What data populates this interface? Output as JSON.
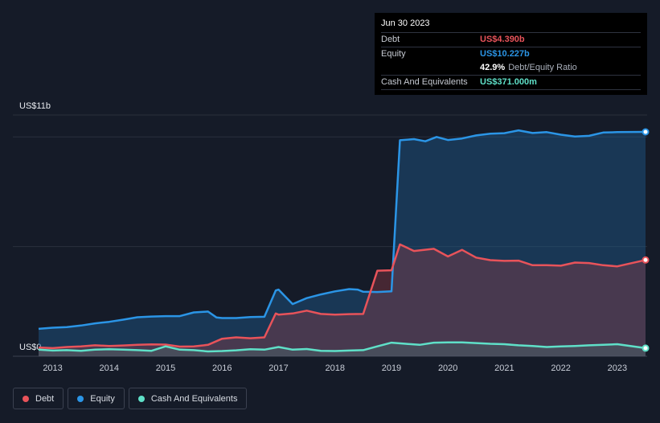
{
  "tooltip": {
    "date": "Jun 30 2023",
    "rows": [
      {
        "label": "Debt",
        "value": "US$4.390b",
        "color": "#e8535a"
      },
      {
        "label": "Equity",
        "value": "US$10.227b",
        "color": "#2b95e6"
      },
      {
        "label": "",
        "value": "42.9%",
        "suffix": "Debt/Equity Ratio"
      },
      {
        "label": "Cash And Equivalents",
        "value": "US$371.000m",
        "color": "#5fe0c8"
      }
    ]
  },
  "legend": [
    {
      "label": "Debt",
      "color": "#e8535a"
    },
    {
      "label": "Equity",
      "color": "#2b95e6"
    },
    {
      "label": "Cash And Equivalents",
      "color": "#5fe0c8"
    }
  ],
  "chart_data": {
    "type": "area",
    "y_top_label": "US$11b",
    "y_bottom_label": "US$0",
    "ylim": [
      0,
      11
    ],
    "xlim": [
      2012.75,
      2023.5
    ],
    "x_ticks": [
      "2013",
      "2014",
      "2015",
      "2016",
      "2017",
      "2018",
      "2019",
      "2020",
      "2021",
      "2022",
      "2023"
    ],
    "grid": true,
    "legend_position": "bottom-left",
    "series": [
      {
        "name": "Equity",
        "color": "#2b95e6",
        "points": [
          [
            2012.75,
            1.25
          ],
          [
            2013.0,
            1.3
          ],
          [
            2013.25,
            1.33
          ],
          [
            2013.5,
            1.4
          ],
          [
            2013.75,
            1.5
          ],
          [
            2014.0,
            1.57
          ],
          [
            2014.25,
            1.67
          ],
          [
            2014.5,
            1.78
          ],
          [
            2014.75,
            1.81
          ],
          [
            2015.0,
            1.83
          ],
          [
            2015.25,
            1.83
          ],
          [
            2015.5,
            2.0
          ],
          [
            2015.75,
            2.04
          ],
          [
            2015.9,
            1.77
          ],
          [
            2016.0,
            1.74
          ],
          [
            2016.25,
            1.74
          ],
          [
            2016.5,
            1.79
          ],
          [
            2016.75,
            1.8
          ],
          [
            2016.95,
            3.0
          ],
          [
            2017.0,
            3.04
          ],
          [
            2017.25,
            2.38
          ],
          [
            2017.5,
            2.65
          ],
          [
            2017.75,
            2.82
          ],
          [
            2018.0,
            2.96
          ],
          [
            2018.25,
            3.06
          ],
          [
            2018.4,
            3.04
          ],
          [
            2018.5,
            2.94
          ],
          [
            2018.75,
            2.93
          ],
          [
            2019.0,
            2.96
          ],
          [
            2019.15,
            9.85
          ],
          [
            2019.4,
            9.9
          ],
          [
            2019.6,
            9.8
          ],
          [
            2019.8,
            10.0
          ],
          [
            2020.0,
            9.86
          ],
          [
            2020.25,
            9.93
          ],
          [
            2020.5,
            10.07
          ],
          [
            2020.75,
            10.15
          ],
          [
            2021.0,
            10.17
          ],
          [
            2021.25,
            10.3
          ],
          [
            2021.5,
            10.18
          ],
          [
            2021.75,
            10.22
          ],
          [
            2022.0,
            10.1
          ],
          [
            2022.25,
            10.02
          ],
          [
            2022.5,
            10.05
          ],
          [
            2022.75,
            10.2
          ],
          [
            2023.0,
            10.22
          ],
          [
            2023.5,
            10.23
          ]
        ]
      },
      {
        "name": "Debt",
        "color": "#e8535a",
        "points": [
          [
            2012.75,
            0.4
          ],
          [
            2013.0,
            0.37
          ],
          [
            2013.25,
            0.42
          ],
          [
            2013.5,
            0.45
          ],
          [
            2013.75,
            0.5
          ],
          [
            2014.0,
            0.47
          ],
          [
            2014.25,
            0.49
          ],
          [
            2014.5,
            0.52
          ],
          [
            2014.75,
            0.54
          ],
          [
            2015.0,
            0.53
          ],
          [
            2015.25,
            0.44
          ],
          [
            2015.5,
            0.45
          ],
          [
            2015.75,
            0.52
          ],
          [
            2016.0,
            0.8
          ],
          [
            2016.25,
            0.86
          ],
          [
            2016.5,
            0.82
          ],
          [
            2016.75,
            0.86
          ],
          [
            2016.95,
            1.95
          ],
          [
            2017.0,
            1.9
          ],
          [
            2017.25,
            1.95
          ],
          [
            2017.5,
            2.08
          ],
          [
            2017.75,
            1.93
          ],
          [
            2018.0,
            1.9
          ],
          [
            2018.25,
            1.92
          ],
          [
            2018.5,
            1.93
          ],
          [
            2018.75,
            3.9
          ],
          [
            2019.0,
            3.92
          ],
          [
            2019.15,
            5.1
          ],
          [
            2019.4,
            4.8
          ],
          [
            2019.75,
            4.9
          ],
          [
            2020.0,
            4.55
          ],
          [
            2020.25,
            4.85
          ],
          [
            2020.5,
            4.5
          ],
          [
            2020.75,
            4.38
          ],
          [
            2021.0,
            4.35
          ],
          [
            2021.25,
            4.36
          ],
          [
            2021.5,
            4.15
          ],
          [
            2021.75,
            4.15
          ],
          [
            2022.0,
            4.13
          ],
          [
            2022.25,
            4.27
          ],
          [
            2022.5,
            4.25
          ],
          [
            2022.75,
            4.15
          ],
          [
            2023.0,
            4.1
          ],
          [
            2023.5,
            4.39
          ]
        ]
      },
      {
        "name": "Cash And Equivalents",
        "color": "#5fe0c8",
        "points": [
          [
            2012.75,
            0.3
          ],
          [
            2013.0,
            0.26
          ],
          [
            2013.25,
            0.28
          ],
          [
            2013.5,
            0.25
          ],
          [
            2013.75,
            0.3
          ],
          [
            2014.0,
            0.32
          ],
          [
            2014.25,
            0.3
          ],
          [
            2014.5,
            0.28
          ],
          [
            2014.75,
            0.25
          ],
          [
            2015.0,
            0.45
          ],
          [
            2015.25,
            0.3
          ],
          [
            2015.5,
            0.28
          ],
          [
            2015.75,
            0.22
          ],
          [
            2016.0,
            0.24
          ],
          [
            2016.25,
            0.27
          ],
          [
            2016.5,
            0.32
          ],
          [
            2016.75,
            0.3
          ],
          [
            2017.0,
            0.42
          ],
          [
            2017.25,
            0.3
          ],
          [
            2017.5,
            0.33
          ],
          [
            2017.75,
            0.25
          ],
          [
            2018.0,
            0.24
          ],
          [
            2018.25,
            0.26
          ],
          [
            2018.5,
            0.28
          ],
          [
            2018.75,
            0.45
          ],
          [
            2019.0,
            0.62
          ],
          [
            2019.25,
            0.57
          ],
          [
            2019.5,
            0.52
          ],
          [
            2019.75,
            0.62
          ],
          [
            2020.0,
            0.63
          ],
          [
            2020.25,
            0.63
          ],
          [
            2020.5,
            0.6
          ],
          [
            2020.75,
            0.57
          ],
          [
            2021.0,
            0.55
          ],
          [
            2021.25,
            0.5
          ],
          [
            2021.5,
            0.47
          ],
          [
            2021.75,
            0.42
          ],
          [
            2022.0,
            0.45
          ],
          [
            2022.25,
            0.47
          ],
          [
            2022.5,
            0.5
          ],
          [
            2022.75,
            0.52
          ],
          [
            2023.0,
            0.55
          ],
          [
            2023.5,
            0.37
          ]
        ]
      }
    ]
  }
}
